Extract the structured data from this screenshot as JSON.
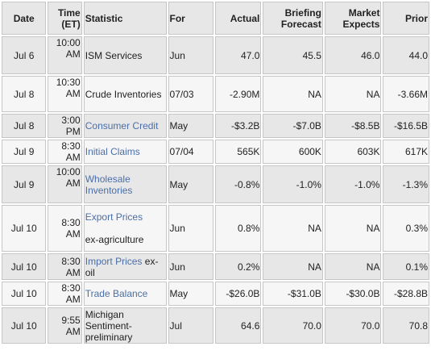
{
  "headers": {
    "date": "Date",
    "time_line1": "Time",
    "time_line2": "(ET)",
    "statistic": "Statistic",
    "for": "For",
    "actual": "Actual",
    "briefing_line1": "Briefing",
    "briefing_line2": "Forecast",
    "market_line1": "Market",
    "market_line2": "Expects",
    "prior": "Prior"
  },
  "rows": [
    {
      "date": "Jul 6",
      "time1": "10:00",
      "time2": "AM",
      "stat_lines": [
        "ISM Services"
      ],
      "stat_link": false,
      "stat_extra": "",
      "for": "Jun",
      "actual": "47.0",
      "briefing": "45.5",
      "market": "46.0",
      "prior": "44.0"
    },
    {
      "date": "Jul 8",
      "time1": "10:30",
      "time2": "AM",
      "stat_lines": [
        "Crude Inventories"
      ],
      "stat_link": false,
      "stat_extra": "",
      "for": "07/03",
      "actual": "-2.90M",
      "briefing": "NA",
      "market": "NA",
      "prior": "-3.66M"
    },
    {
      "date": "Jul 8",
      "time1": "3:00 PM",
      "time2": "",
      "stat_lines": [
        "Consumer Credit"
      ],
      "stat_link": true,
      "stat_extra": "",
      "for": "May",
      "actual": "-$3.2B",
      "briefing": "-$7.0B",
      "market": "-$8.5B",
      "prior": "-$16.5B"
    },
    {
      "date": "Jul 9",
      "time1": "8:30 AM",
      "time2": "",
      "stat_lines": [
        "Initial Claims"
      ],
      "stat_link": true,
      "stat_extra": "",
      "for": "07/04",
      "actual": "565K",
      "briefing": "600K",
      "market": "603K",
      "prior": "617K"
    },
    {
      "date": "Jul 9",
      "time1": "10:00",
      "time2": "AM",
      "stat_lines": [
        "Wholesale",
        "Inventories"
      ],
      "stat_link": true,
      "stat_extra": "",
      "for": "May",
      "actual": "-0.8%",
      "briefing": "-1.0%",
      "market": "-1.0%",
      "prior": "-1.3%"
    },
    {
      "date": "Jul 10",
      "time1": "8:30 AM",
      "time2": "",
      "stat_lines": [
        "Export Prices"
      ],
      "stat_link": true,
      "stat_extra": "ex-agriculture",
      "for": "Jun",
      "actual": "0.8%",
      "briefing": "NA",
      "market": "NA",
      "prior": "0.3%"
    },
    {
      "date": "Jul 10",
      "time1": "8:30 AM",
      "time2": "",
      "stat_lines": [
        "Import Prices"
      ],
      "stat_link": true,
      "stat_extra": "ex-oil",
      "for": "Jun",
      "actual": "0.2%",
      "briefing": "NA",
      "market": "NA",
      "prior": "0.1%"
    },
    {
      "date": "Jul 10",
      "time1": "8:30 AM",
      "time2": "",
      "stat_lines": [
        "Trade Balance"
      ],
      "stat_link": true,
      "stat_extra": "",
      "for": "May",
      "actual": "-$26.0B",
      "briefing": "-$31.0B",
      "market": "-$30.0B",
      "prior": "-$28.8B"
    },
    {
      "date": "Jul 10",
      "time1": "9:55 AM",
      "time2": "",
      "stat_lines": [
        "Michigan",
        "Sentiment-",
        "preliminary"
      ],
      "stat_link": false,
      "stat_extra": "",
      "for": "Jul",
      "actual": "64.6",
      "briefing": "70.0",
      "market": "70.0",
      "prior": "70.8"
    }
  ],
  "colors": {
    "link": "#4b6ea8",
    "header_bg": "#e7e7e7",
    "row_alt_bg": "#f6f6f6",
    "border": "#c6c6c6"
  }
}
